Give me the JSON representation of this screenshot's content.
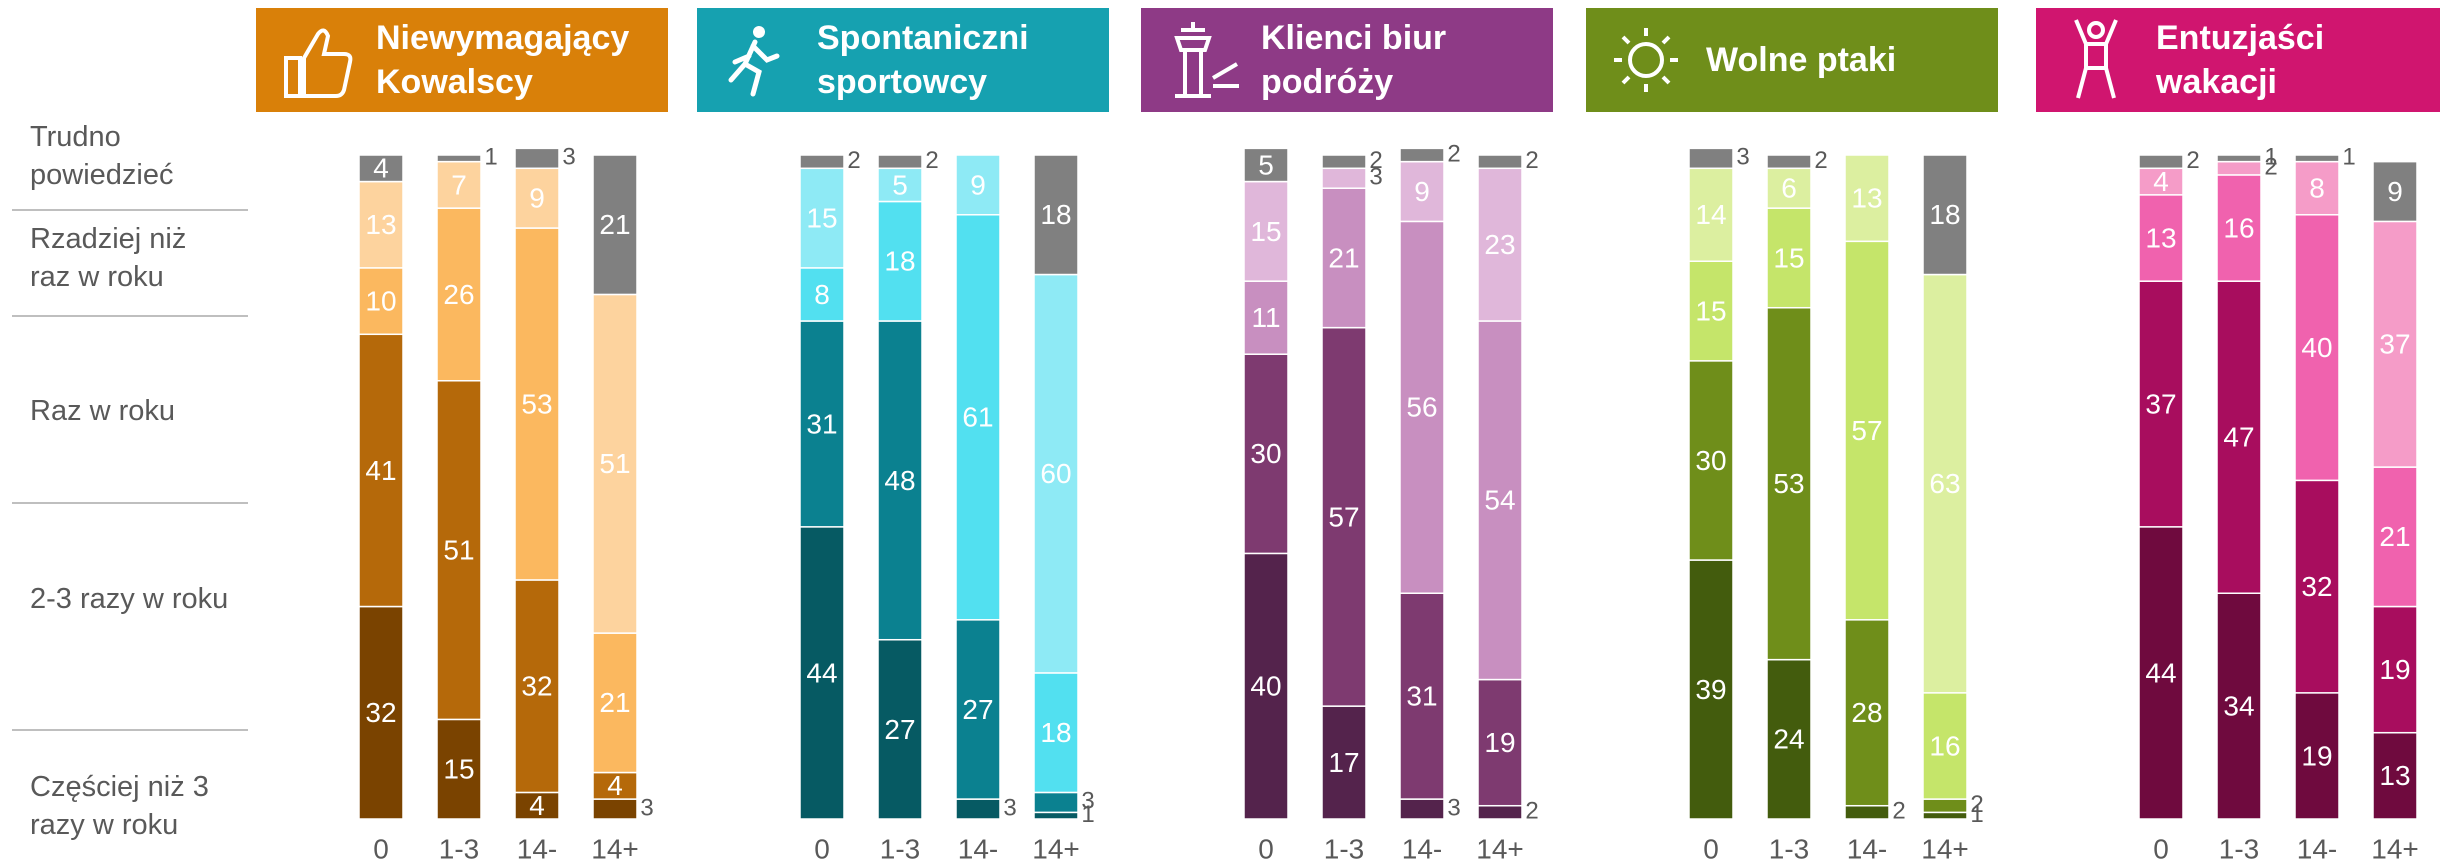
{
  "legend": [
    "Trudno powiedzieć",
    "Rzadziej niż raz w roku",
    "Raz w roku",
    "2-3 razy w roku",
    "Częściej niż 3 razy w roku"
  ],
  "chart_data": [
    {
      "type": "stacked_bar",
      "title": "Niewymagający Kowalscy",
      "header_color": "#d98009",
      "ylim": [
        0,
        100
      ],
      "categories": [
        "0",
        "1-3",
        "14-",
        "14+"
      ],
      "series": [
        {
          "color": "#7a4300",
          "values": [
            32,
            15,
            4,
            3
          ]
        },
        {
          "color": "#b5690a",
          "values": [
            41,
            51,
            32,
            4
          ]
        },
        {
          "color": "#fbb85f",
          "values": [
            10,
            26,
            53,
            21
          ]
        },
        {
          "color": "#fdd39e",
          "values": [
            13,
            7,
            9,
            51
          ]
        },
        {
          "color": "#808080",
          "values": [
            4,
            1,
            3,
            21
          ]
        }
      ]
    },
    {
      "type": "stacked_bar",
      "title": "Spontaniczni sportowcy",
      "header_color": "#16a1b0",
      "ylim": [
        0,
        100
      ],
      "categories": [
        "0",
        "1-3",
        "14-",
        "14+"
      ],
      "series": [
        {
          "color": "#065a63",
          "values": [
            44,
            27,
            3,
            1
          ]
        },
        {
          "color": "#0b8190",
          "values": [
            31,
            48,
            27,
            3
          ]
        },
        {
          "color": "#52e0f0",
          "values": [
            8,
            18,
            61,
            18
          ]
        },
        {
          "color": "#8eeaf5",
          "values": [
            15,
            5,
            9,
            60
          ]
        },
        {
          "color": "#808080",
          "values": [
            2,
            2,
            0,
            18
          ]
        }
      ]
    },
    {
      "type": "stacked_bar",
      "title": "Klienci biur podróży",
      "header_color": "#8e3a86",
      "ylim": [
        0,
        100
      ],
      "categories": [
        "0",
        "1-3",
        "14-",
        "14+"
      ],
      "series": [
        {
          "color": "#54234c",
          "values": [
            40,
            17,
            3,
            2
          ]
        },
        {
          "color": "#7e3a70",
          "values": [
            30,
            57,
            31,
            19
          ]
        },
        {
          "color": "#c88fc0",
          "values": [
            11,
            21,
            56,
            54
          ]
        },
        {
          "color": "#e0b7da",
          "values": [
            15,
            3,
            9,
            23
          ]
        },
        {
          "color": "#808080",
          "values": [
            5,
            2,
            2,
            2
          ]
        }
      ]
    },
    {
      "type": "stacked_bar",
      "title": "Wolne ptaki",
      "header_color": "#6f8e1a",
      "ylim": [
        0,
        100
      ],
      "categories": [
        "0",
        "1-3",
        "14-",
        "14+"
      ],
      "series": [
        {
          "color": "#435c0d",
          "values": [
            39,
            24,
            2,
            1
          ]
        },
        {
          "color": "#6f8e1a",
          "values": [
            30,
            53,
            28,
            2
          ]
        },
        {
          "color": "#c5e56a",
          "values": [
            15,
            15,
            57,
            16
          ]
        },
        {
          "color": "#dcefa0",
          "values": [
            14,
            6,
            13,
            63
          ]
        },
        {
          "color": "#808080",
          "values": [
            3,
            2,
            0,
            18
          ]
        }
      ]
    },
    {
      "type": "stacked_bar",
      "title": "Entuzjaści wakacji",
      "header_color": "#d0156f",
      "ylim": [
        0,
        100
      ],
      "categories": [
        "0",
        "1-3",
        "14-",
        "14+"
      ],
      "series": [
        {
          "color": "#6f0a3e",
          "values": [
            44,
            34,
            19,
            13
          ]
        },
        {
          "color": "#a80d5e",
          "values": [
            37,
            47,
            32,
            19
          ]
        },
        {
          "color": "#f062ae",
          "values": [
            13,
            16,
            40,
            21
          ]
        },
        {
          "color": "#f59cc8",
          "values": [
            4,
            2,
            8,
            37
          ]
        },
        {
          "color": "#808080",
          "values": [
            2,
            1,
            1,
            9
          ]
        }
      ]
    }
  ]
}
